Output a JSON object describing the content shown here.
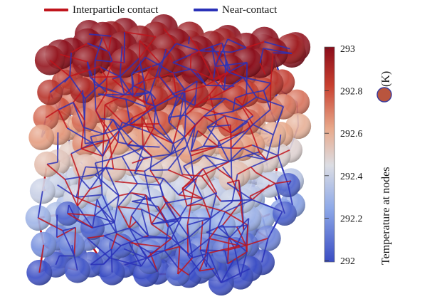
{
  "legend": {
    "contact_label": "Interparticle contact",
    "contact_color": "#c0141c",
    "near_label": "Near-contact",
    "near_color": "#2a31b8"
  },
  "colorbar": {
    "title": "Temperature at nodes",
    "unit": "(K)",
    "min": 292,
    "max": 293,
    "ticks": [
      "293",
      "292.8",
      "292.6",
      "292.4",
      "292.2",
      "292"
    ],
    "colors": [
      "#3a4dc4",
      "#8ea9e8",
      "#dcdde3",
      "#e8a98b",
      "#c8402f",
      "#8a0c1a"
    ],
    "node_marker_color": "#b9553e"
  },
  "diagram": {
    "description_none": ""
  }
}
